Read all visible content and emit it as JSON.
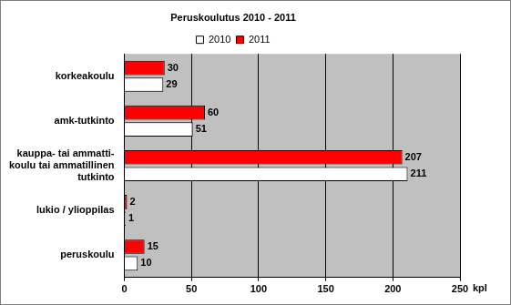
{
  "chart_data": {
    "type": "bar",
    "title": "Peruskoulutus 2010 - 2011",
    "orientation": "horizontal",
    "categories": [
      "korkeakoulu",
      "amk-tutkinto",
      "kauppa- tai ammatti-koulu tai ammatillinen tutkinto",
      "lukio / ylioppilas",
      "peruskoulu"
    ],
    "series": [
      {
        "name": "2010",
        "color": "#ffffff",
        "values": [
          29,
          51,
          211,
          1,
          10
        ]
      },
      {
        "name": "2011",
        "color": "#ff0000",
        "values": [
          30,
          60,
          207,
          2,
          15
        ]
      }
    ],
    "x_label": "kpl",
    "xlim": [
      0,
      250
    ],
    "xticks": [
      0,
      50,
      100,
      150,
      200,
      250
    ],
    "grid": true,
    "legend": "top",
    "data_labels": true
  }
}
